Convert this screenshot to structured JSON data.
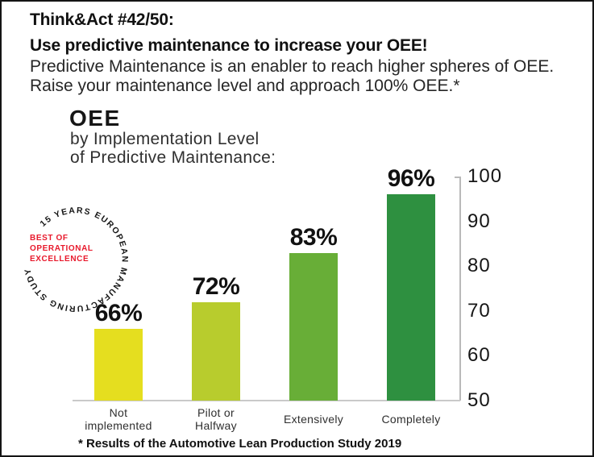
{
  "header": {
    "kicker": "Think&Act #42/50:",
    "headline": "Use predictive maintenance to increase your OEE!",
    "body_line1": "Predictive Maintenance is an enabler to reach higher spheres of OEE.",
    "body_line2": "Raise your maintenance level and approach 100% OEE.*"
  },
  "chart_heading": {
    "title": "OEE",
    "subtitle_line1": "by Implementation Level",
    "subtitle_line2": "of Predictive Maintenance:"
  },
  "badge": {
    "ring_text": "15 YEARS EUROPEAN MANUFACTURING STUDY",
    "center_line1": "BEST OF",
    "center_line2": "OPERATIONAL",
    "center_line3": "EXCELLENCE",
    "accent_color": "#e8192c",
    "ring_text_color": "#161616"
  },
  "chart_data": {
    "type": "bar",
    "title": "OEE by Implementation Level of Predictive Maintenance",
    "categories": [
      "Not implemented",
      "Pilot or Halfway",
      "Extensively",
      "Completely"
    ],
    "category_label_lines": [
      [
        "Not",
        "implemented"
      ],
      [
        "Pilot or",
        "Halfway"
      ],
      [
        "Extensively"
      ],
      [
        "Completely"
      ]
    ],
    "values": [
      66,
      72,
      83,
      96
    ],
    "value_labels": [
      "66%",
      "72%",
      "83%",
      "96%"
    ],
    "bar_colors": [
      "#e5de1f",
      "#b8cc2d",
      "#68ae37",
      "#2e9040"
    ],
    "xlabel": "",
    "ylabel": "",
    "ylim": [
      50,
      100
    ],
    "yticks": [
      100,
      90,
      80,
      70,
      60,
      50
    ],
    "grid": false,
    "legend": "none",
    "axis_color": "#b9b9b9"
  },
  "footnote": "* Results of the Automotive Lean Production Study 2019"
}
